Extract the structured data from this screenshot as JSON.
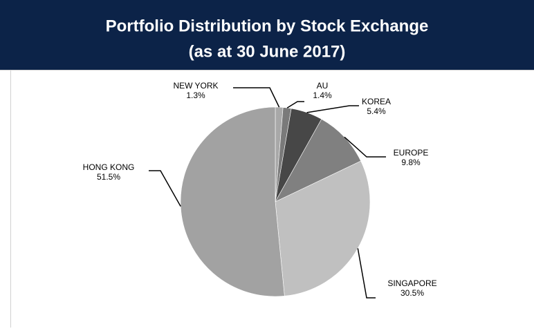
{
  "chart_data": {
    "type": "pie",
    "title": "Portfolio Distribution by Stock Exchange",
    "subtitle": "(as at 30 June 2017)",
    "categories": [
      "NEW YORK",
      "AU",
      "KOREA",
      "EUROPE",
      "SINGAPORE",
      "HONG KONG"
    ],
    "values": [
      1.3,
      1.4,
      5.4,
      9.8,
      30.5,
      51.5
    ],
    "value_labels": [
      "1.3%",
      "1.4%",
      "5.4%",
      "9.8%",
      "30.5%",
      "51.5%"
    ],
    "colors": [
      "#a8a8a8",
      "#7a7a7a",
      "#474747",
      "#808080",
      "#c0c0c0",
      "#a2a2a2"
    ]
  }
}
